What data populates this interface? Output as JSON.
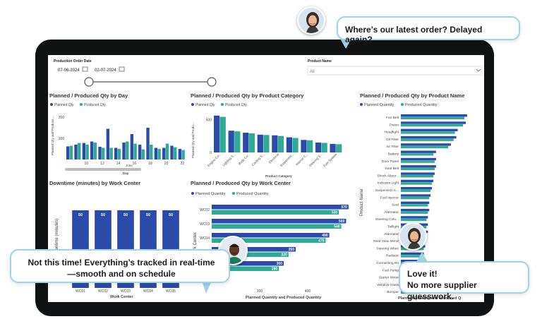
{
  "chat": {
    "top_message": "Where’s our latest order? Delayed again?",
    "left_message_line1": "Not this time! Everything’s tracked in real-time",
    "left_message_line2": "—smooth and on schedule",
    "right_message_line1": "Love it!",
    "right_message_line2": "No more supplier guesswork."
  },
  "filters": {
    "date_label": "Production Order Date",
    "date_start": "07-06-2024",
    "date_end": "02-07-2024",
    "product_label": "Product Name",
    "product_value": "All"
  },
  "legend": {
    "planned_qty": "Planned Qty",
    "produced_qty": "Produced Qty",
    "planned_quantity": "Planned Quantity",
    "produced_quantity": "Produced Quantity"
  },
  "colors": {
    "planned": "#2b4bab",
    "produced": "#2fab95",
    "downtime": "#2b4bab",
    "page": "#ffffff"
  },
  "chart_data": [
    {
      "type": "bar",
      "title": "Planned / Produced Qty by Day",
      "ylabel": "Planned Qty and Produce...",
      "xlabel": "Day",
      "x_group_label": "June",
      "x_ticks": [
        "10",
        "12",
        "14",
        "16",
        "18",
        "20",
        "22"
      ],
      "y_ticks": [
        "100",
        "200"
      ],
      "ylim": [
        0,
        240
      ],
      "categories": [
        "8",
        "9",
        "10",
        "11",
        "12",
        "13",
        "14",
        "15",
        "16",
        "17",
        "18",
        "19",
        "20",
        "21",
        "22"
      ],
      "series": [
        {
          "name": "Planned Qty",
          "values": [
            62,
            70,
            78,
            85,
            60,
            145,
            55,
            80,
            120,
            70,
            150,
            55,
            55,
            65,
            50
          ]
        },
        {
          "name": "Produced Qty",
          "values": [
            65,
            78,
            70,
            80,
            55,
            55,
            50,
            85,
            75,
            48,
            70,
            50,
            75,
            58,
            45
          ]
        }
      ]
    },
    {
      "type": "bar",
      "title": "Planned / Produced Qty by Product Category",
      "ylabel": "Planned Qty and Produ...",
      "xlabel": "Product Category",
      "y_ticks": [
        "500",
        "0"
      ],
      "ylim": [
        0,
        600
      ],
      "categories": [
        "Engine Co...",
        "Lighting S...",
        "Body Co...",
        "Cooling S...",
        "Electrical",
        "Suspensio...",
        "Interior C...",
        "Steering S...",
        "Fuel System"
      ],
      "series": [
        {
          "name": "Planned Qty",
          "values": [
            560,
            330,
            300,
            270,
            260,
            230,
            190,
            150,
            130
          ]
        },
        {
          "name": "Produced Qty",
          "values": [
            540,
            320,
            290,
            265,
            250,
            220,
            185,
            145,
            125
          ]
        }
      ]
    },
    {
      "type": "bar",
      "title": "Downtime (minutes) by Work Center",
      "ylabel": "Downtime (minutes)",
      "xlabel": "Work Center",
      "ylim": [
        0,
        60
      ],
      "categories": [
        "WC01",
        "WC02",
        "WC03",
        "WC04",
        "WC05"
      ],
      "values": [
        50,
        50,
        50,
        50,
        50
      ],
      "data_labels": [
        "50",
        "50",
        "50",
        "50",
        "50"
      ]
    },
    {
      "type": "bar",
      "orientation": "horizontal",
      "title": "Planned / Produced Qty by Work Center",
      "ylabel": "Work Center",
      "xlabel": "Planned Quantity and Produced Quantity",
      "x_ticks": [
        "200",
        "400"
      ],
      "xlim": [
        0,
        600
      ],
      "categories": [
        "WC02",
        "WC03",
        "WC04",
        "WC01",
        "WC05"
      ],
      "series": [
        {
          "name": "Planned Quantity",
          "values": [
            570,
            560,
            490,
            350,
            300
          ]
        },
        {
          "name": "Produced Quantity",
          "values": [
            530,
            540,
            475,
            320,
            280
          ]
        }
      ]
    },
    {
      "type": "bar",
      "orientation": "horizontal",
      "title": "Planned / Produced Qty by Product Name",
      "ylabel": "Product Name",
      "xlabel": "Planned Quantity and Produced Q",
      "xlim": [
        0,
        60
      ],
      "categories": [
        "Fan Belt",
        "Piston",
        "Headlight",
        "Oil Filter",
        "Air Filter",
        "Battery",
        "Door Panel",
        "Seat Belt",
        "Shock Absor...",
        "Indicator Light",
        "Suspension A...",
        "Fuel Injector",
        "Seat",
        "Alternator",
        "Steering Colu...",
        "Taillight",
        "Alternator",
        "Rear View Mirror",
        "Steering Whee",
        "Radiator",
        "Connecting Ro",
        "Fuel Pump",
        "Starter Motor",
        "Window Glass",
        "Bumper"
      ],
      "series": [
        {
          "name": "Planned Quantity",
          "values": [
            49,
            48,
            42,
            41,
            37,
            26,
            26,
            26,
            25,
            24,
            23,
            22,
            21,
            21,
            20,
            20,
            20,
            18,
            18,
            17,
            17,
            17,
            16,
            15,
            15
          ]
        },
        {
          "name": "Produced Quantity",
          "values": [
            47,
            46,
            40,
            39,
            35,
            24,
            25,
            25,
            24,
            23,
            22,
            21,
            20,
            20,
            19,
            19,
            19,
            17,
            17,
            16,
            16,
            16,
            15,
            14,
            14
          ]
        }
      ]
    }
  ]
}
